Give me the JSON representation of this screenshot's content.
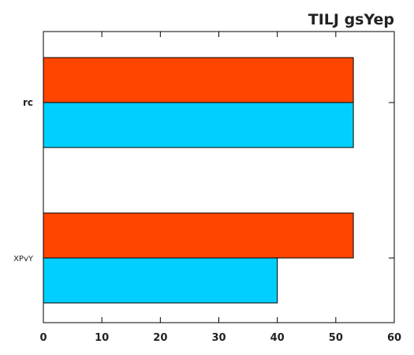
{
  "chart_data": {
    "type": "bar",
    "orientation": "horizontal",
    "title": "TILJ gsYep",
    "categories": [
      "rc",
      "XPvY"
    ],
    "series": [
      {
        "color": "#ff4500",
        "values": [
          53,
          53
        ]
      },
      {
        "color": "#00cfff",
        "values": [
          53,
          40
        ]
      }
    ],
    "xlim": [
      0,
      60
    ],
    "x_ticks": [
      0,
      10,
      20,
      30,
      40,
      50,
      60
    ],
    "grid": false
  }
}
